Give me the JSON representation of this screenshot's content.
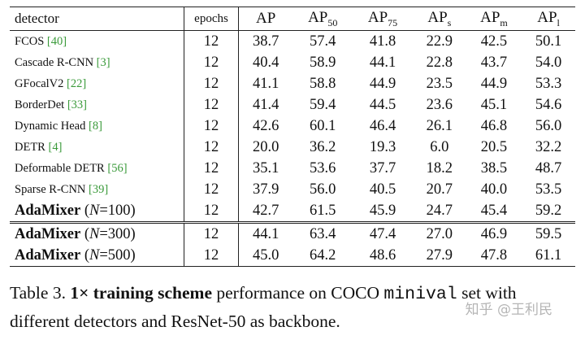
{
  "table": {
    "header": {
      "detector": "detector",
      "epochs": "epochs",
      "metrics": [
        {
          "text": "AP"
        },
        {
          "text": "AP",
          "sub": "50"
        },
        {
          "text": "AP",
          "sub": "75"
        },
        {
          "text": "AP",
          "sub": "s"
        },
        {
          "text": "AP",
          "sub": "m"
        },
        {
          "text": "AP",
          "sub": "l"
        }
      ]
    },
    "rows": [
      {
        "detector": "FCOS",
        "ref": "[40]",
        "epochs": "12",
        "values": [
          "38.7",
          "57.4",
          "41.8",
          "22.9",
          "42.5",
          "50.1"
        ],
        "bold": []
      },
      {
        "detector": "Cascade R-CNN",
        "ref": "[3]",
        "epochs": "12",
        "values": [
          "40.4",
          "58.9",
          "44.1",
          "22.8",
          "43.7",
          "54.0"
        ],
        "bold": []
      },
      {
        "detector": "GFocalV2",
        "ref": "[22]",
        "epochs": "12",
        "values": [
          "41.1",
          "58.8",
          "44.9",
          "23.5",
          "44.9",
          "53.3"
        ],
        "bold": []
      },
      {
        "detector": "BorderDet",
        "ref": "[33]",
        "epochs": "12",
        "values": [
          "41.4",
          "59.4",
          "44.5",
          "23.6",
          "45.1",
          "54.6"
        ],
        "bold": []
      },
      {
        "detector": "Dynamic Head",
        "ref": "[8]",
        "epochs": "12",
        "values": [
          "42.6",
          "60.1",
          "46.4",
          "26.1",
          "46.8",
          "56.0"
        ],
        "bold": [
          2,
          3,
          4
        ]
      },
      {
        "detector": "DETR",
        "ref": "[4]",
        "epochs": "12",
        "values": [
          "20.0",
          "36.2",
          "19.3",
          "6.0",
          "20.5",
          "32.2"
        ],
        "bold": []
      },
      {
        "detector": "Deformable DETR",
        "ref": "[56]",
        "epochs": "12",
        "values": [
          "35.1",
          "53.6",
          "37.7",
          "18.2",
          "38.5",
          "48.7"
        ],
        "bold": []
      },
      {
        "detector": "Sparse R-CNN",
        "ref": "[39]",
        "epochs": "12",
        "values": [
          "37.9",
          "56.0",
          "40.5",
          "20.7",
          "40.0",
          "53.5"
        ],
        "bold": []
      },
      {
        "detector": "AdaMixer",
        "config": [
          "(",
          "N",
          "=100)"
        ],
        "epochs": "12",
        "values": [
          "42.7",
          "61.5",
          "45.9",
          "24.7",
          "45.4",
          "59.2"
        ],
        "bold": [
          0,
          1,
          5
        ]
      },
      {
        "detector": "AdaMixer",
        "config": [
          "(",
          "N",
          "=300)"
        ],
        "epochs": "12",
        "values": [
          "44.1",
          "63.4",
          "47.4",
          "27.0",
          "46.9",
          "59.5"
        ],
        "bold": [
          0,
          1,
          2,
          3,
          4,
          5
        ]
      },
      {
        "detector": "AdaMixer",
        "config": [
          "(",
          "N",
          "=500)"
        ],
        "epochs": "12",
        "values": [
          "45.0",
          "64.2",
          "48.6",
          "27.9",
          "47.8",
          "61.1"
        ],
        "bold": [
          0,
          1,
          2,
          3,
          4,
          5
        ]
      }
    ]
  },
  "caption": [
    {
      "text": "Table 3. ",
      "style": "normal"
    },
    {
      "text": "1× training scheme",
      "style": "bold"
    },
    {
      "text": " performance on COCO ",
      "style": "normal"
    },
    {
      "text": "minival",
      "style": "mono"
    },
    {
      "text": " set with different detectors and ResNet-50 as backbone.",
      "style": "normal"
    }
  ],
  "watermark": "知乎 @王利民"
}
